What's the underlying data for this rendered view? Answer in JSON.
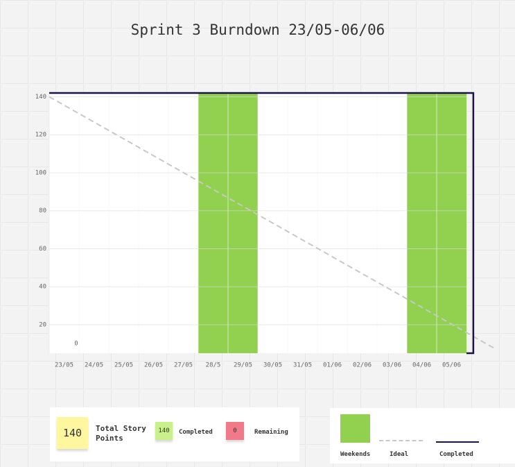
{
  "chart_data": {
    "type": "burndown",
    "title": "Sprint 3 Burndown 23/05-06/06",
    "categories": [
      "23/05",
      "24/05",
      "25/05",
      "26/05",
      "27/05",
      "28/5",
      "29/05",
      "30/05",
      "31/05",
      "01/06",
      "02/06",
      "03/06",
      "04/06",
      "05/06"
    ],
    "xlim": [
      0,
      14
    ],
    "ylim": [
      5,
      142
    ],
    "yticks": [
      20,
      40,
      60,
      80,
      100,
      120,
      140
    ],
    "grid": true,
    "annotations": [
      "0"
    ],
    "series": [
      {
        "name": "Weekends",
        "color": "#92d050",
        "kind": "bar",
        "values": [
          null,
          null,
          null,
          null,
          null,
          142,
          142,
          null,
          null,
          null,
          null,
          null,
          142,
          142
        ]
      },
      {
        "name": "Ideal",
        "color": "#c8c8c8",
        "kind": "dashed",
        "x": [
          0,
          15
        ],
        "values": [
          140,
          7
        ]
      },
      {
        "name": "Completed",
        "color": "#1a1446",
        "kind": "line",
        "x": [
          0,
          14.23,
          14.23,
          14
        ],
        "values": [
          142,
          142,
          5,
          5
        ]
      }
    ]
  },
  "summary": {
    "total": 140,
    "total_label": "Total Story Points",
    "completed": 140,
    "completed_label": "Completed",
    "remaining": 0,
    "remaining_label": "Remaining"
  }
}
